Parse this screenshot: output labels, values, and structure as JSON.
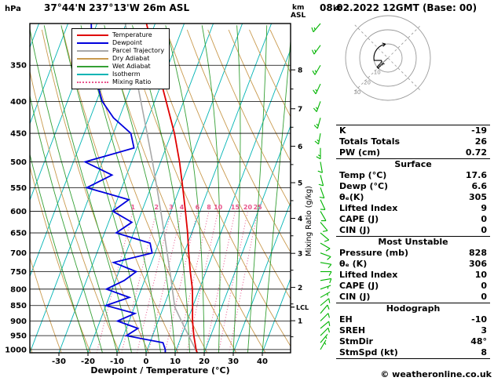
{
  "header": {
    "station": "37°44'N 237°13'W 26m ASL",
    "datetime": "08.02.2022 12GMT (Base: 00)"
  },
  "copyright": "© weatheronline.co.uk",
  "colors": {
    "temperature": "#e00000",
    "dewpoint": "#0000dd",
    "parcel": "#a8a8a8",
    "dry_adiabat": "#c99a4e",
    "wet_adiabat": "#35a035",
    "isotherm": "#00b4b4",
    "mixing_ratio": "#e8558c",
    "wind_barb": "#00b400",
    "grid": "#000000",
    "hodo_grid": "#999999"
  },
  "legend": {
    "items": [
      {
        "label": "Temperature",
        "color_key": "temperature",
        "style": "solid"
      },
      {
        "label": "Dewpoint",
        "color_key": "dewpoint",
        "style": "solid"
      },
      {
        "label": "Parcel Trajectory",
        "color_key": "parcel",
        "style": "solid"
      },
      {
        "label": "Dry Adiabat",
        "color_key": "dry_adiabat",
        "style": "solid"
      },
      {
        "label": "Wet Adiabat",
        "color_key": "wet_adiabat",
        "style": "solid"
      },
      {
        "label": "Isotherm",
        "color_key": "isotherm",
        "style": "solid"
      },
      {
        "label": "Mixing Ratio",
        "color_key": "mixing_ratio",
        "style": "dotted"
      }
    ]
  },
  "axes": {
    "pressure_unit": "hPa",
    "pressure_ticks": [
      350,
      400,
      450,
      500,
      550,
      600,
      650,
      700,
      750,
      800,
      850,
      900,
      950,
      1000
    ],
    "temp_ticks": [
      -30,
      -20,
      -10,
      0,
      10,
      20,
      30,
      40
    ],
    "x_label": "Dewpoint / Temperature (°C)",
    "km_unit": [
      "km",
      "ASL"
    ],
    "km_ticks": [
      [
        1,
        899
      ],
      [
        2,
        795
      ],
      [
        3,
        701
      ],
      [
        4,
        616
      ],
      [
        5,
        540
      ],
      [
        6,
        472
      ],
      [
        7,
        411
      ],
      [
        8,
        356
      ]
    ],
    "km_minor_ticks": [
      954,
      845,
      746,
      657,
      577,
      505,
      440,
      382
    ],
    "mixing_label": "Mixing Ratio (g/kg)",
    "lcl_label": "LCL"
  },
  "chart_data": {
    "type": "skewt",
    "pressure_range": [
      300,
      1012
    ],
    "temp_axis_range_c": [
      -40,
      45
    ],
    "isotherm_step_c": 10,
    "dry_adiabats_c": {
      "min": -40,
      "max": 130,
      "step": 10
    },
    "wet_adiabats_c": {
      "min": -20,
      "max": 40,
      "step": 5
    },
    "mixing_ratio_lines_gkg": [
      1,
      2,
      3,
      4,
      6,
      8,
      10,
      15,
      20,
      25
    ],
    "lcl_pressure_hpa": 855,
    "temperature": {
      "p": [
        1012,
        1000,
        950,
        900,
        850,
        800,
        750,
        700,
        650,
        600,
        550,
        500,
        450,
        400,
        350,
        300
      ],
      "t": [
        17.6,
        16.8,
        14.2,
        11.8,
        9.8,
        7.6,
        4.6,
        1.6,
        -1.4,
        -5.0,
        -9.0,
        -13.5,
        -19.0,
        -26.0,
        -34.0,
        -43.0
      ]
    },
    "dewpoint": {
      "p": [
        1012,
        1000,
        975,
        950,
        925,
        900,
        875,
        850,
        825,
        800,
        775,
        750,
        725,
        700,
        675,
        650,
        625,
        600,
        575,
        550,
        525,
        500,
        475,
        450,
        425,
        400,
        375,
        350,
        325,
        300
      ],
      "t": [
        6.6,
        6.2,
        4.5,
        -9.0,
        -6.0,
        -14.0,
        -9.0,
        -20.0,
        -13.0,
        -22.0,
        -17.0,
        -14.0,
        -23.0,
        -11.0,
        -13.0,
        -26.0,
        -22.0,
        -30.0,
        -26.0,
        -42.0,
        -35.0,
        -46.0,
        -31.0,
        -34.0,
        -42.0,
        -48.0,
        -52.0,
        -56.0,
        -59.0,
        -62.0
      ]
    },
    "parcel": {
      "p": [
        1012,
        1000,
        950,
        900,
        855,
        800,
        750,
        700,
        650,
        600,
        550,
        500,
        450,
        400,
        350,
        300
      ],
      "t": [
        17.6,
        16.6,
        12.4,
        8.0,
        3.9,
        0.7,
        -2.4,
        -5.8,
        -9.5,
        -13.5,
        -17.9,
        -22.8,
        -28.4,
        -34.7,
        -41.9,
        -50.3
      ]
    },
    "winds": [
      [
        1000,
        30,
        5
      ],
      [
        975,
        40,
        5
      ],
      [
        950,
        45,
        10
      ],
      [
        925,
        50,
        10
      ],
      [
        900,
        45,
        10
      ],
      [
        875,
        40,
        10
      ],
      [
        850,
        50,
        10
      ],
      [
        825,
        60,
        5
      ],
      [
        800,
        70,
        5
      ],
      [
        775,
        80,
        10
      ],
      [
        750,
        90,
        10
      ],
      [
        725,
        100,
        10
      ],
      [
        700,
        110,
        10
      ],
      [
        675,
        120,
        10
      ],
      [
        650,
        130,
        10
      ],
      [
        625,
        140,
        10
      ],
      [
        600,
        150,
        10
      ],
      [
        575,
        155,
        10
      ],
      [
        550,
        160,
        10
      ],
      [
        525,
        165,
        10
      ],
      [
        500,
        170,
        10
      ],
      [
        475,
        180,
        15
      ],
      [
        450,
        190,
        15
      ],
      [
        425,
        195,
        15
      ],
      [
        400,
        200,
        15
      ],
      [
        375,
        205,
        15
      ],
      [
        350,
        210,
        15
      ],
      [
        325,
        215,
        15
      ],
      [
        300,
        220,
        15
      ]
    ]
  },
  "hodograph": {
    "unit": "kt",
    "rings_kt": [
      10,
      20,
      30
    ],
    "storm_motion": {
      "dir_deg": 48,
      "speed_kt": 8
    }
  },
  "indices": {
    "general": [
      [
        "K",
        "-19"
      ],
      [
        "Totals Totals",
        "26"
      ],
      [
        "PW (cm)",
        "0.72"
      ]
    ],
    "sections": [
      {
        "title": "Surface",
        "rows": [
          [
            "Temp (°C)",
            "17.6"
          ],
          [
            "Dewp (°C)",
            "6.6"
          ],
          [
            "θₑ(K)",
            "305"
          ],
          [
            "Lifted Index",
            "9"
          ],
          [
            "CAPE (J)",
            "0"
          ],
          [
            "CIN (J)",
            "0"
          ]
        ]
      },
      {
        "title": "Most Unstable",
        "rows": [
          [
            "Pressure (mb)",
            "828"
          ],
          [
            "θₑ (K)",
            "306"
          ],
          [
            "Lifted Index",
            "10"
          ],
          [
            "CAPE (J)",
            "0"
          ],
          [
            "CIN (J)",
            "0"
          ]
        ]
      },
      {
        "title": "Hodograph",
        "rows": [
          [
            "EH",
            "-10"
          ],
          [
            "SREH",
            "3"
          ],
          [
            "StmDir",
            "48°"
          ],
          [
            "StmSpd (kt)",
            "8"
          ]
        ]
      }
    ]
  }
}
